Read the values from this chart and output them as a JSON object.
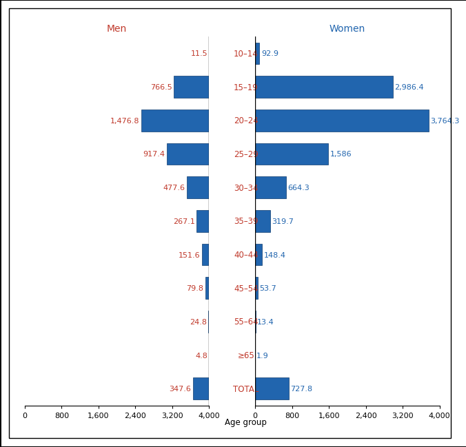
{
  "age_groups": [
    "10–14",
    "15–19",
    "20–24",
    "25–29",
    "30–34",
    "35–39",
    "40–44",
    "45–54",
    "55–64",
    "≥65",
    "TOTAL"
  ],
  "men_values": [
    11.5,
    766.5,
    1476.8,
    917.4,
    477.6,
    267.1,
    151.6,
    79.8,
    24.8,
    4.8,
    347.6
  ],
  "women_values": [
    92.9,
    2986.4,
    3764.3,
    1586.0,
    664.3,
    319.7,
    148.4,
    53.7,
    13.4,
    1.9,
    727.8
  ],
  "men_labels": [
    "11.5",
    "766.5",
    "1,476.8",
    "917.4",
    "477.6",
    "267.1",
    "151.6",
    "79.8",
    "24.8",
    "4.8",
    "347.6"
  ],
  "women_labels": [
    "92.9",
    "2,986.4",
    "3,764.3",
    "1,586",
    "664.3",
    "319.7",
    "148.4",
    "53.7",
    "13.4",
    "1.9",
    "727.8"
  ],
  "bar_color": "#2165AE",
  "bar_edge_color": "#0D3A6E",
  "men_label_color": "#C0392B",
  "women_label_color": "#2165AE",
  "age_label_color": "#C0392B",
  "men_title": "Men",
  "women_title": "Women",
  "xlabel": "Age group",
  "xlim": 4000,
  "xticks": [
    0,
    800,
    1600,
    2400,
    3200,
    4000
  ],
  "xtick_labels_left": [
    "4,000",
    "3,200",
    "2,400",
    "1,600",
    "800",
    "0"
  ],
  "xtick_labels_right": [
    "0",
    "800",
    "1,600",
    "2,400",
    "3,200",
    "4,000"
  ],
  "background_color": "#FFFFFF",
  "font_size_labels": 8.5,
  "font_size_title": 10,
  "font_size_ticks": 8,
  "font_size_values": 8,
  "bar_height": 0.65
}
